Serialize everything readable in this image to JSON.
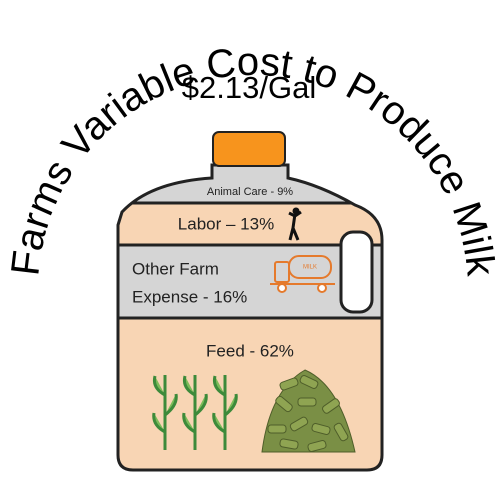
{
  "title": "Farms Variable Cost to Produce Milk",
  "subtitle": "$2.13/Gal",
  "segments": [
    {
      "lines": [
        "Animal Care - 9%"
      ]
    },
    {
      "lines": [
        "Labor – 13%"
      ]
    },
    {
      "lines": [
        "Other Farm",
        "Expense - 16%"
      ]
    },
    {
      "lines": [
        "Feed - 62%"
      ]
    }
  ],
  "truck_label": "MILK"
}
